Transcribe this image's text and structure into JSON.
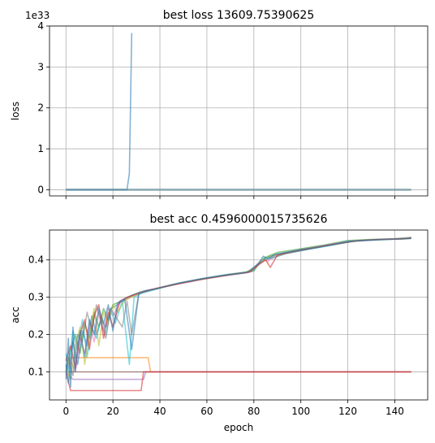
{
  "chart_data": [
    {
      "type": "line",
      "title": "best loss 13609.75390625",
      "xlabel": "",
      "ylabel": "loss",
      "offset_text": "1e33",
      "xlim": [
        -7,
        154
      ],
      "ylim": [
        -0.15,
        4.0
      ],
      "x_ticks": [
        0,
        20,
        40,
        60,
        80,
        100,
        120,
        140
      ],
      "y_ticks": [
        0,
        1,
        2,
        3,
        4
      ],
      "y_tick_labels": [
        "0",
        "1",
        "2",
        "3",
        "4"
      ],
      "grid": true,
      "series": [
        {
          "color": "#1f77b4",
          "x": [
            0,
            26,
            27,
            28
          ],
          "y": [
            0.0,
            0.0,
            0.4,
            3.83
          ]
        },
        {
          "color": "#5f8b98",
          "x": [
            0,
            147
          ],
          "y": [
            0.0,
            0.0
          ]
        }
      ]
    },
    {
      "type": "line",
      "title": "best acc 0.4596000015735626",
      "xlabel": "epoch",
      "ylabel": "acc",
      "xlim": [
        -7,
        154
      ],
      "ylim": [
        0.025,
        0.48
      ],
      "x_ticks": [
        0,
        20,
        40,
        60,
        80,
        100,
        120,
        140
      ],
      "x_tick_labels": [
        "0",
        "20",
        "40",
        "60",
        "80",
        "100",
        "120",
        "140"
      ],
      "y_ticks": [
        0.1,
        0.2,
        0.3,
        0.4
      ],
      "y_tick_labels": [
        "0.1",
        "0.2",
        "0.3",
        "0.4"
      ],
      "grid": true,
      "series": [
        {
          "color": "#8c564b",
          "x": [
            0,
            147
          ],
          "y": [
            0.1,
            0.1
          ]
        },
        {
          "color": "#ff7f0e",
          "x": [
            0,
            2,
            35,
            36,
            147
          ],
          "y": [
            0.1,
            0.138,
            0.138,
            0.1,
            0.1
          ]
        },
        {
          "color": "#9467bd",
          "x": [
            0,
            3,
            33,
            34,
            147
          ],
          "y": [
            0.1,
            0.08,
            0.08,
            0.1,
            0.1
          ]
        },
        {
          "color": "#d62728",
          "x": [
            0,
            2,
            32,
            33,
            147
          ],
          "y": [
            0.1,
            0.05,
            0.05,
            0.1,
            0.1
          ]
        },
        {
          "color": "#2ca02c",
          "x": [
            0,
            2,
            4,
            6,
            8,
            10,
            12,
            14,
            16,
            18,
            20,
            24,
            28,
            32,
            36,
            40,
            50,
            60,
            70,
            80,
            82,
            84,
            86,
            88,
            90,
            100,
            110,
            120,
            130,
            140,
            147
          ],
          "y": [
            0.1,
            0.16,
            0.2,
            0.15,
            0.23,
            0.19,
            0.26,
            0.22,
            0.27,
            0.24,
            0.28,
            0.29,
            0.305,
            0.315,
            0.32,
            0.325,
            0.34,
            0.352,
            0.362,
            0.37,
            0.39,
            0.4,
            0.41,
            0.415,
            0.42,
            0.43,
            0.44,
            0.452,
            0.455,
            0.457,
            0.46
          ]
        },
        {
          "color": "#1f77b4",
          "x": [
            0,
            1,
            3,
            5,
            7,
            9,
            11,
            13,
            15,
            17,
            19,
            22,
            26,
            30,
            34,
            38,
            48,
            58,
            68,
            78,
            81,
            83,
            85,
            87,
            92,
            100,
            110,
            120,
            130,
            140,
            147
          ],
          "y": [
            0.12,
            0.07,
            0.18,
            0.12,
            0.21,
            0.17,
            0.25,
            0.2,
            0.24,
            0.22,
            0.27,
            0.28,
            0.3,
            0.31,
            0.318,
            0.323,
            0.338,
            0.35,
            0.36,
            0.368,
            0.385,
            0.398,
            0.405,
            0.41,
            0.418,
            0.428,
            0.438,
            0.45,
            0.454,
            0.456,
            0.458
          ]
        },
        {
          "color": "#e377c2",
          "x": [
            0,
            2,
            4,
            6,
            8,
            10,
            12,
            14,
            16,
            18,
            20,
            23,
            27,
            31,
            35,
            40,
            50,
            60,
            70,
            79,
            82,
            84,
            86,
            89,
            95,
            103,
            113,
            123,
            133,
            143,
            147
          ],
          "y": [
            0.09,
            0.13,
            0.1,
            0.19,
            0.15,
            0.23,
            0.18,
            0.26,
            0.21,
            0.27,
            0.25,
            0.285,
            0.298,
            0.312,
            0.319,
            0.326,
            0.339,
            0.351,
            0.361,
            0.368,
            0.392,
            0.402,
            0.396,
            0.412,
            0.42,
            0.43,
            0.442,
            0.451,
            0.455,
            0.457,
            0.459
          ]
        },
        {
          "color": "#17becf",
          "x": [
            0,
            1,
            3,
            5,
            7,
            9,
            11,
            13,
            15,
            17,
            19,
            21,
            24,
            27,
            29,
            32,
            36,
            45,
            55,
            65,
            75,
            80,
            83,
            85,
            88,
            93,
            101,
            111,
            121,
            131,
            141,
            147
          ],
          "y": [
            0.15,
            0.1,
            0.21,
            0.16,
            0.24,
            0.14,
            0.22,
            0.19,
            0.25,
            0.2,
            0.27,
            0.23,
            0.29,
            0.12,
            0.3,
            0.31,
            0.317,
            0.333,
            0.346,
            0.356,
            0.365,
            0.372,
            0.395,
            0.408,
            0.404,
            0.416,
            0.426,
            0.437,
            0.449,
            0.453,
            0.456,
            0.457
          ]
        },
        {
          "color": "#bcbd22",
          "x": [
            0,
            2,
            4,
            6,
            8,
            10,
            12,
            14,
            16,
            18,
            20,
            22,
            25,
            28,
            32,
            37,
            46,
            56,
            66,
            76,
            81,
            84,
            87,
            90,
            96,
            104,
            114,
            124,
            134,
            144,
            147
          ],
          "y": [
            0.11,
            0.08,
            0.17,
            0.22,
            0.12,
            0.2,
            0.27,
            0.17,
            0.26,
            0.23,
            0.28,
            0.26,
            0.292,
            0.3,
            0.313,
            0.321,
            0.335,
            0.347,
            0.357,
            0.366,
            0.38,
            0.405,
            0.41,
            0.414,
            0.421,
            0.431,
            0.441,
            0.452,
            0.455,
            0.456,
            0.458
          ]
        },
        {
          "color": "#7f7f7f",
          "x": [
            0,
            1,
            3,
            5,
            7,
            9,
            11,
            13,
            15,
            17,
            19,
            21,
            24,
            26,
            28,
            31,
            35,
            44,
            54,
            64,
            74,
            79,
            82,
            85,
            88,
            94,
            102,
            112,
            122,
            132,
            142,
            147
          ],
          "y": [
            0.1,
            0.14,
            0.09,
            0.2,
            0.18,
            0.26,
            0.21,
            0.28,
            0.23,
            0.19,
            0.27,
            0.25,
            0.22,
            0.29,
            0.2,
            0.31,
            0.318,
            0.332,
            0.345,
            0.355,
            0.364,
            0.37,
            0.388,
            0.4,
            0.407,
            0.417,
            0.427,
            0.439,
            0.45,
            0.454,
            0.456,
            0.458
          ]
        },
        {
          "color": "#d62728",
          "x": [
            0,
            2,
            4,
            6,
            8,
            10,
            12,
            14,
            16,
            18,
            20,
            23,
            26,
            30,
            34,
            39,
            49,
            59,
            69,
            78,
            82,
            85,
            87,
            90,
            97,
            105,
            115,
            125,
            135,
            145,
            147
          ],
          "y": [
            0.13,
            0.17,
            0.11,
            0.2,
            0.24,
            0.16,
            0.25,
            0.28,
            0.19,
            0.26,
            0.22,
            0.29,
            0.3,
            0.308,
            0.316,
            0.324,
            0.337,
            0.349,
            0.359,
            0.367,
            0.387,
            0.4,
            0.38,
            0.413,
            0.423,
            0.432,
            0.443,
            0.452,
            0.455,
            0.457,
            0.46
          ]
        },
        {
          "color": "#1f77b4",
          "x": [
            0,
            1,
            2,
            3,
            4,
            5,
            6,
            8,
            10,
            12,
            14,
            16,
            18,
            20,
            22,
            25,
            28,
            31,
            34,
            38,
            47,
            57,
            67,
            77,
            82,
            84,
            86,
            89,
            94,
            103,
            113,
            123,
            133,
            143,
            147
          ],
          "y": [
            0.08,
            0.19,
            0.06,
            0.22,
            0.1,
            0.17,
            0.21,
            0.14,
            0.24,
            0.2,
            0.27,
            0.23,
            0.28,
            0.21,
            0.285,
            0.295,
            0.16,
            0.31,
            0.317,
            0.322,
            0.336,
            0.348,
            0.358,
            0.366,
            0.39,
            0.41,
            0.403,
            0.415,
            0.42,
            0.429,
            0.44,
            0.451,
            0.454,
            0.456,
            0.458
          ]
        }
      ]
    }
  ]
}
